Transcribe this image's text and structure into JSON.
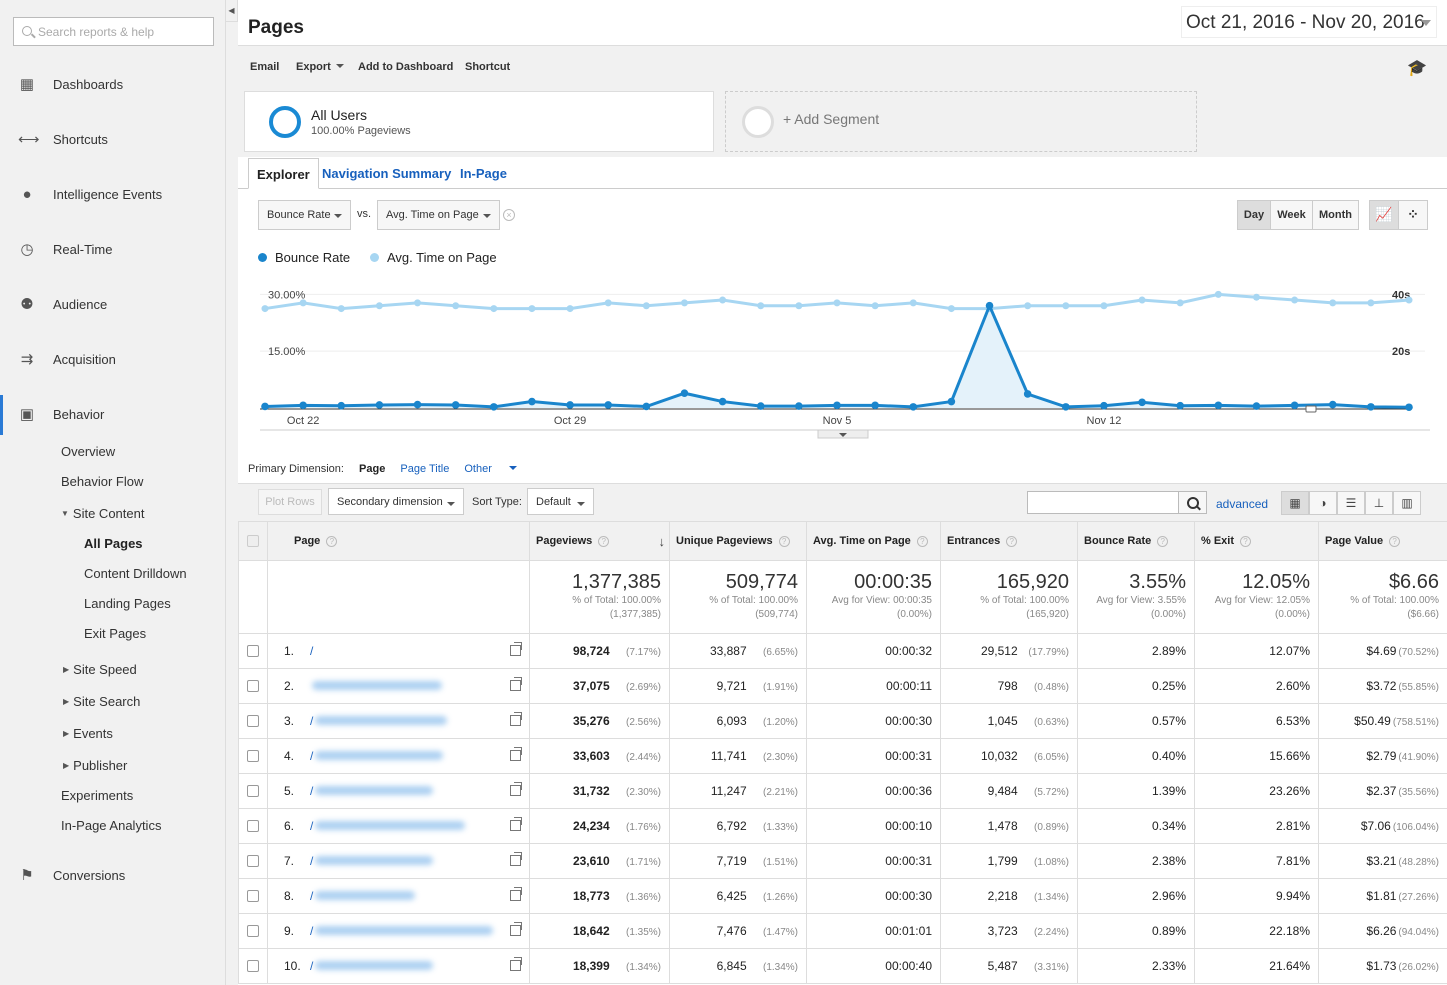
{
  "sidebar": {
    "search_placeholder": "Search reports & help",
    "main_items": [
      {
        "label": "Dashboards",
        "icon": "grid-icon"
      },
      {
        "label": "Shortcuts",
        "icon": "shortcut-arrows-icon"
      },
      {
        "label": "Intelligence Events",
        "icon": "lightbulb-icon"
      },
      {
        "label": "Real-Time",
        "icon": "clock-icon"
      },
      {
        "label": "Audience",
        "icon": "people-icon"
      },
      {
        "label": "Acquisition",
        "icon": "acquisition-arrows-icon"
      },
      {
        "label": "Behavior",
        "icon": "behavior-window-icon"
      },
      {
        "label": "Conversions",
        "icon": "flag-icon"
      }
    ],
    "behavior_sub": {
      "overview": "Overview",
      "behavior_flow": "Behavior Flow",
      "site_content": "Site Content",
      "all_pages": "All Pages",
      "content_drilldown": "Content Drilldown",
      "landing_pages": "Landing Pages",
      "exit_pages": "Exit Pages",
      "site_speed": "Site Speed",
      "site_search": "Site Search",
      "events": "Events",
      "publisher": "Publisher",
      "experiments": "Experiments",
      "in_page_analytics": "In-Page Analytics"
    }
  },
  "header": {
    "title": "Pages",
    "date_range": "Oct 21, 2016 - Nov 20, 2016"
  },
  "toolbar": {
    "email": "Email",
    "export": "Export",
    "add_to_dashboard": "Add to Dashboard",
    "shortcut": "Shortcut"
  },
  "segments": {
    "all_users": "All Users",
    "all_users_sub": "100.00% Pageviews",
    "add_segment": "+ Add Segment"
  },
  "tabs": [
    "Explorer",
    "Navigation Summary",
    "In-Page"
  ],
  "chart_controls": {
    "metric1": "Bounce Rate",
    "vs": "vs.",
    "metric2": "Avg. Time on Page",
    "day": "Day",
    "week": "Week",
    "month": "Month"
  },
  "chart_data": {
    "type": "line",
    "x": [
      "Oct 21",
      "Oct 22",
      "Oct 23",
      "Oct 24",
      "Oct 25",
      "Oct 26",
      "Oct 27",
      "Oct 28",
      "Oct 29",
      "Oct 30",
      "Oct 31",
      "Nov 1",
      "Nov 2",
      "Nov 3",
      "Nov 4",
      "Nov 5",
      "Nov 6",
      "Nov 7",
      "Nov 8",
      "Nov 9",
      "Nov 10",
      "Nov 11",
      "Nov 12",
      "Nov 13",
      "Nov 14",
      "Nov 15",
      "Nov 16",
      "Nov 17",
      "Nov 18",
      "Nov 19",
      "Nov 20"
    ],
    "x_tick_labels": [
      "Oct 22",
      "Oct 29",
      "Nov 5",
      "Nov 12"
    ],
    "series": [
      {
        "name": "Bounce Rate",
        "axis": "left",
        "unit": "%",
        "color": "#1a85cc",
        "values": [
          0.4,
          0.7,
          0.6,
          0.8,
          0.9,
          0.8,
          0.3,
          1.7,
          0.8,
          0.8,
          0.4,
          3.9,
          1.7,
          0.5,
          0.5,
          0.7,
          0.7,
          0.3,
          1.7,
          27.0,
          3.7,
          0.3,
          0.6,
          1.5,
          0.6,
          0.7,
          0.5,
          0.7,
          0.9,
          0.3,
          0.2
        ]
      },
      {
        "name": "Avg. Time on Page",
        "axis": "right",
        "unit": "s",
        "color": "#a7d6f2",
        "values": [
          35,
          37,
          35,
          36,
          37,
          36,
          35,
          35,
          35,
          37,
          36,
          37,
          38,
          36,
          36,
          37,
          36,
          37,
          35,
          35,
          36,
          36,
          36,
          38,
          37,
          40,
          39,
          38,
          37,
          37,
          38
        ]
      }
    ],
    "left_axis": {
      "ticks": [
        "30.00%",
        "15.00%"
      ],
      "ylim": [
        0,
        33
      ]
    },
    "right_axis": {
      "ticks": [
        "40s",
        "20s"
      ],
      "ylim": [
        0,
        44
      ]
    }
  },
  "primary_dimension": {
    "label": "Primary Dimension:",
    "page": "Page",
    "page_title": "Page Title",
    "other": "Other"
  },
  "table_controls": {
    "plot_rows": "Plot Rows",
    "secondary_dimension": "Secondary dimension",
    "sort_type_label": "Sort Type:",
    "sort_type": "Default",
    "advanced": "advanced"
  },
  "table": {
    "columns": [
      "Page",
      "Pageviews",
      "Unique Pageviews",
      "Avg. Time on Page",
      "Entrances",
      "Bounce Rate",
      "% Exit",
      "Page Value"
    ],
    "totals": [
      {
        "big": "1,377,385",
        "l1": "% of Total: 100.00%",
        "l2": "(1,377,385)"
      },
      {
        "big": "509,774",
        "l1": "% of Total: 100.00%",
        "l2": "(509,774)"
      },
      {
        "big": "00:00:35",
        "l1": "Avg for View: 00:00:35",
        "l2": "(0.00%)"
      },
      {
        "big": "165,920",
        "l1": "% of Total: 100.00%",
        "l2": "(165,920)"
      },
      {
        "big": "3.55%",
        "l1": "Avg for View: 3.55%",
        "l2": "(0.00%)"
      },
      {
        "big": "12.05%",
        "l1": "Avg for View: 12.05%",
        "l2": "(0.00%)"
      },
      {
        "big": "$6.66",
        "l1": "% of Total: 100.00%",
        "l2": "($6.66)"
      }
    ],
    "rows": [
      {
        "idx": "1.",
        "path": "/",
        "pv": "98,724",
        "pv_pct": "(7.17%)",
        "upv": "33,887",
        "upv_pct": "(6.65%)",
        "atop": "00:00:32",
        "ent": "29,512",
        "ent_pct": "(17.79%)",
        "br": "2.89%",
        "exit": "12.07%",
        "val": "$4.69",
        "val_pct": "(70.52%)",
        "blur": 0
      },
      {
        "idx": "2.",
        "path": "",
        "pv": "37,075",
        "pv_pct": "(2.69%)",
        "upv": "9,721",
        "upv_pct": "(1.91%)",
        "atop": "00:00:11",
        "ent": "798",
        "ent_pct": "(0.48%)",
        "br": "0.25%",
        "exit": "2.60%",
        "val": "$3.72",
        "val_pct": "(55.85%)",
        "blur": 130
      },
      {
        "idx": "3.",
        "path": "/",
        "pv": "35,276",
        "pv_pct": "(2.56%)",
        "upv": "6,093",
        "upv_pct": "(1.20%)",
        "atop": "00:00:30",
        "ent": "1,045",
        "ent_pct": "(0.63%)",
        "br": "0.57%",
        "exit": "6.53%",
        "val": "$50.49",
        "val_pct": "(758.51%)",
        "blur": 132
      },
      {
        "idx": "4.",
        "path": "/",
        "pv": "33,603",
        "pv_pct": "(2.44%)",
        "upv": "11,741",
        "upv_pct": "(2.30%)",
        "atop": "00:00:31",
        "ent": "10,032",
        "ent_pct": "(6.05%)",
        "br": "0.40%",
        "exit": "15.66%",
        "val": "$2.79",
        "val_pct": "(41.90%)",
        "blur": 128
      },
      {
        "idx": "5.",
        "path": "/",
        "pv": "31,732",
        "pv_pct": "(2.30%)",
        "upv": "11,247",
        "upv_pct": "(2.21%)",
        "atop": "00:00:36",
        "ent": "9,484",
        "ent_pct": "(5.72%)",
        "br": "1.39%",
        "exit": "23.26%",
        "val": "$2.37",
        "val_pct": "(35.56%)",
        "blur": 118
      },
      {
        "idx": "6.",
        "path": "/",
        "pv": "24,234",
        "pv_pct": "(1.76%)",
        "upv": "6,792",
        "upv_pct": "(1.33%)",
        "atop": "00:00:10",
        "ent": "1,478",
        "ent_pct": "(0.89%)",
        "br": "0.34%",
        "exit": "2.81%",
        "val": "$7.06",
        "val_pct": "(106.04%)",
        "blur": 150
      },
      {
        "idx": "7.",
        "path": "/",
        "pv": "23,610",
        "pv_pct": "(1.71%)",
        "upv": "7,719",
        "upv_pct": "(1.51%)",
        "atop": "00:00:31",
        "ent": "1,799",
        "ent_pct": "(1.08%)",
        "br": "2.38%",
        "exit": "7.81%",
        "val": "$3.21",
        "val_pct": "(48.28%)",
        "blur": 118
      },
      {
        "idx": "8.",
        "path": "/",
        "pv": "18,773",
        "pv_pct": "(1.36%)",
        "upv": "6,425",
        "upv_pct": "(1.26%)",
        "atop": "00:00:30",
        "ent": "2,218",
        "ent_pct": "(1.34%)",
        "br": "2.96%",
        "exit": "9.94%",
        "val": "$1.81",
        "val_pct": "(27.26%)",
        "blur": 100
      },
      {
        "idx": "9.",
        "path": "/",
        "pv": "18,642",
        "pv_pct": "(1.35%)",
        "upv": "7,476",
        "upv_pct": "(1.47%)",
        "atop": "00:01:01",
        "ent": "3,723",
        "ent_pct": "(2.24%)",
        "br": "0.89%",
        "exit": "22.18%",
        "val": "$6.26",
        "val_pct": "(94.04%)",
        "blur": 178
      },
      {
        "idx": "10.",
        "path": "/",
        "pv": "18,399",
        "pv_pct": "(1.34%)",
        "upv": "6,845",
        "upv_pct": "(1.34%)",
        "atop": "00:00:40",
        "ent": "5,487",
        "ent_pct": "(3.31%)",
        "br": "2.33%",
        "exit": "21.64%",
        "val": "$1.73",
        "val_pct": "(26.02%)",
        "blur": 118
      }
    ]
  }
}
